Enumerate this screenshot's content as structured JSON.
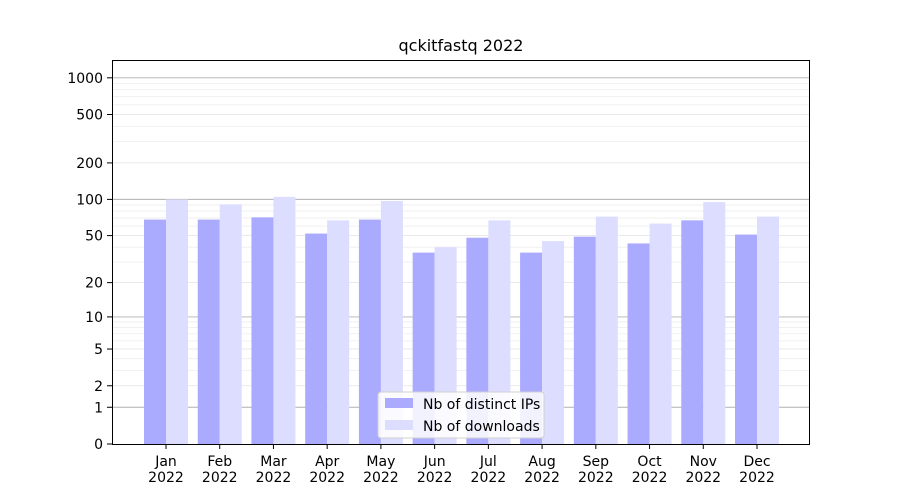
{
  "chart_data": {
    "type": "bar",
    "title": "qckitfastq 2022",
    "xlabel": "",
    "ylabel": "",
    "scale": "symlog",
    "ylim": [
      0,
      1400
    ],
    "yticks": [
      0,
      1,
      2,
      5,
      10,
      20,
      50,
      100,
      200,
      500,
      1000
    ],
    "categories": [
      "Jan\n2022",
      "Feb\n2022",
      "Mar\n2022",
      "Apr\n2022",
      "May\n2022",
      "Jun\n2022",
      "Jul\n2022",
      "Aug\n2022",
      "Sep\n2022",
      "Oct\n2022",
      "Nov\n2022",
      "Dec\n2022"
    ],
    "series": [
      {
        "name": "Nb of distinct IPs",
        "color": "#aaaaff",
        "values": [
          68,
          68,
          71,
          52,
          68,
          36,
          48,
          36,
          49,
          43,
          67,
          51
        ]
      },
      {
        "name": "Nb of downloads",
        "color": "#ddddff",
        "values": [
          100,
          91,
          105,
          67,
          97,
          40,
          67,
          45,
          72,
          63,
          95,
          72
        ]
      }
    ],
    "legend_position": "bottom-center",
    "grid": true
  }
}
